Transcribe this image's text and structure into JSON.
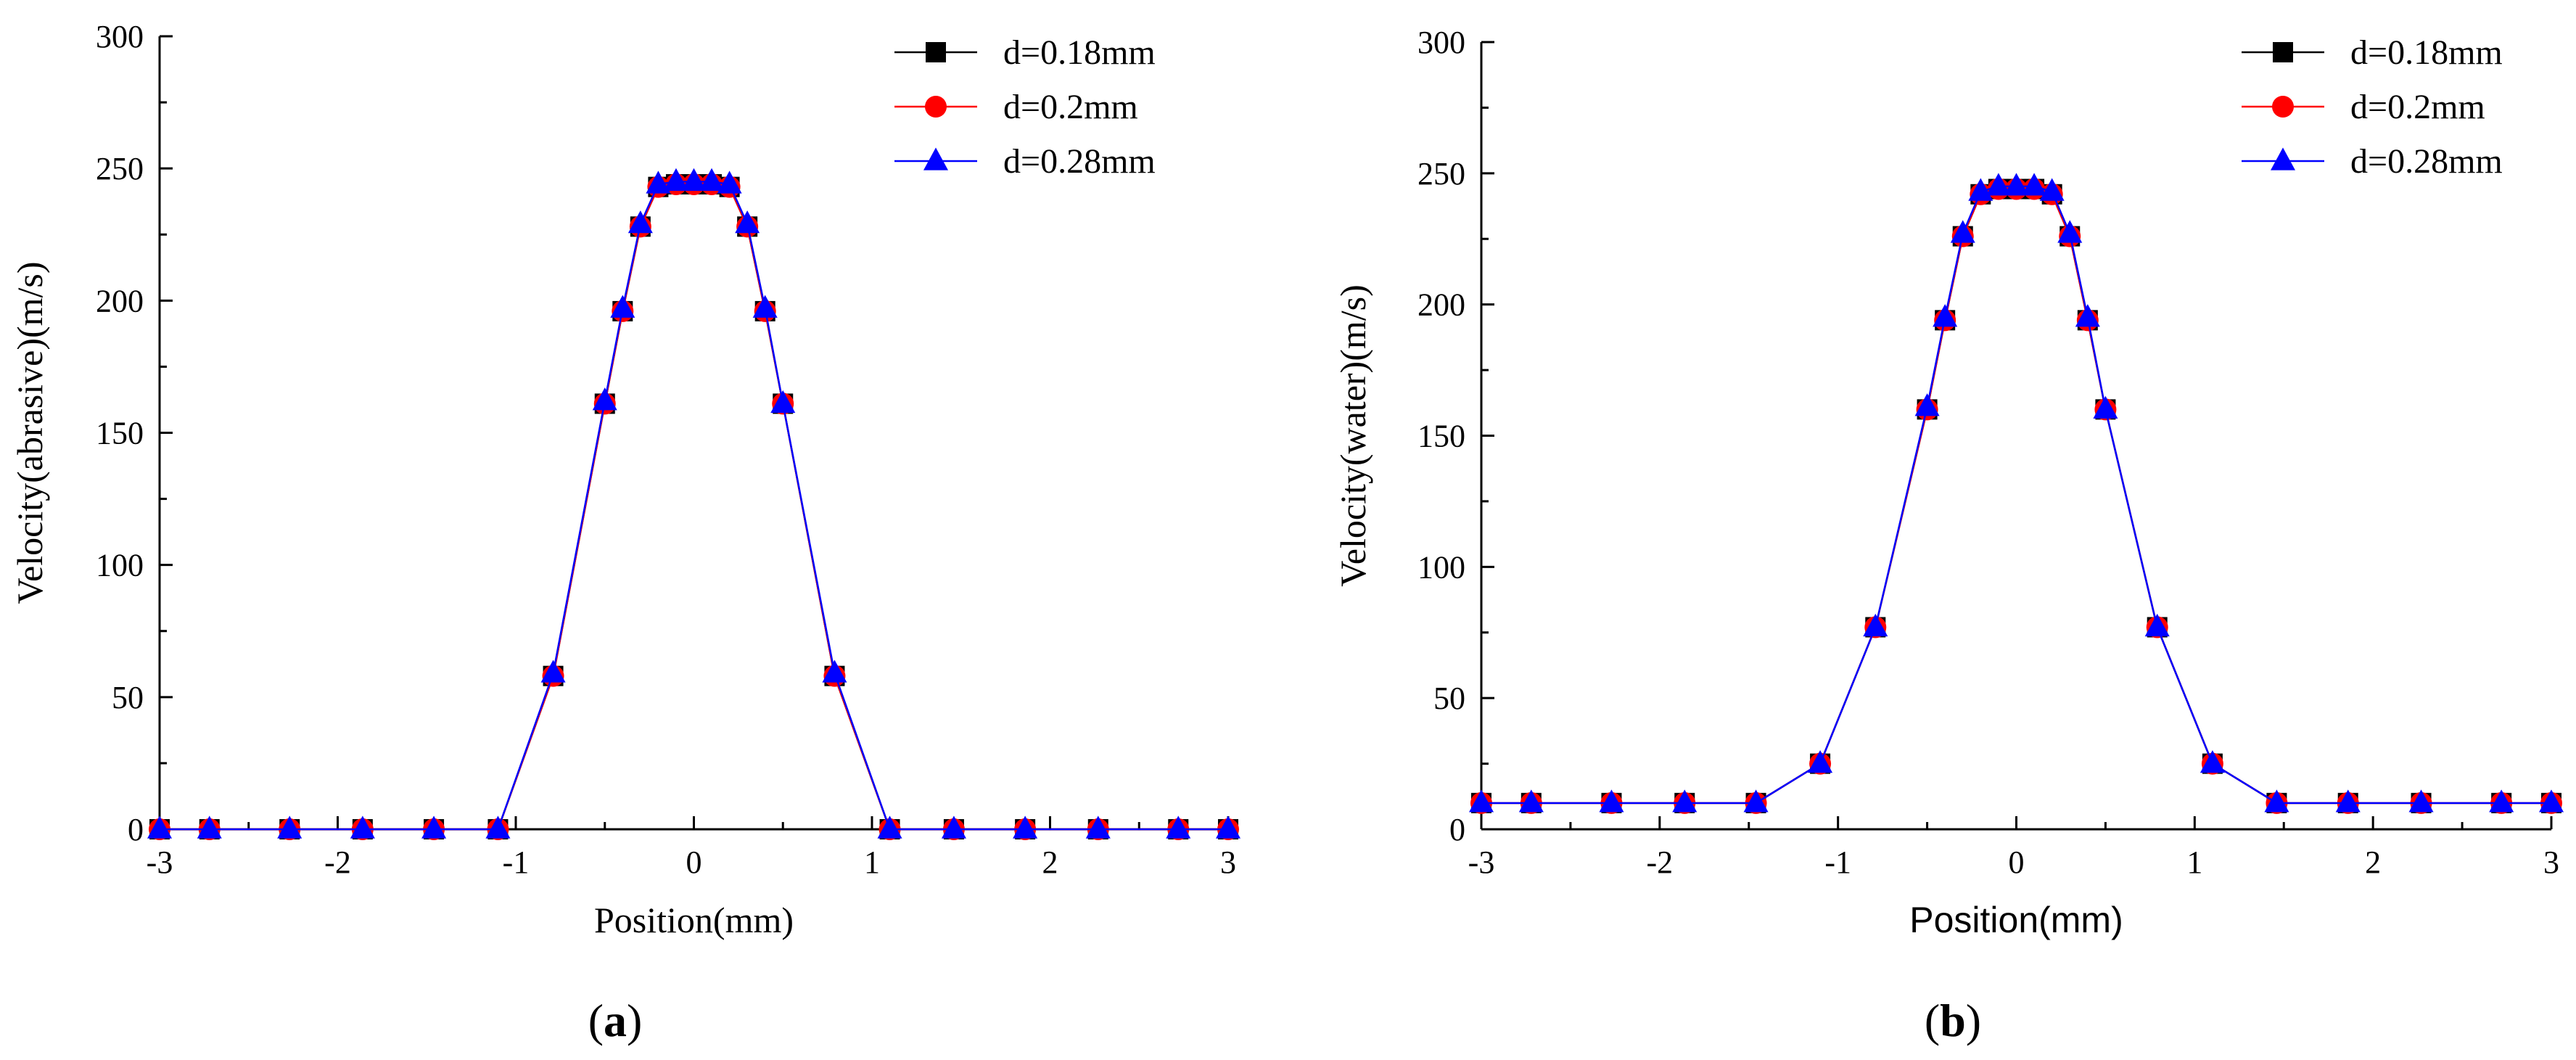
{
  "chart_data": [
    {
      "type": "line",
      "panel_label_open": "(",
      "panel_label_letter": "a",
      "panel_label_close": ")",
      "xlabel": "Position(mm)",
      "ylabel": "Velocity(abrasive)(m/s)",
      "xlim": [
        -3,
        3
      ],
      "ylim": [
        0,
        300
      ],
      "xticks": [
        "-3",
        "-2",
        "-1",
        "0",
        "1",
        "2",
        "3"
      ],
      "yticks": [
        "0",
        "50",
        "100",
        "150",
        "200",
        "250",
        "300"
      ],
      "legend_position": "top-right",
      "x": [
        -3,
        -2.72,
        -2.27,
        -1.86,
        -1.46,
        -1.1,
        -0.79,
        -0.5,
        -0.4,
        -0.3,
        -0.2,
        -0.1,
        0,
        0.1,
        0.2,
        0.3,
        0.4,
        0.5,
        0.79,
        1.1,
        1.46,
        1.86,
        2.27,
        2.72,
        3
      ],
      "series": [
        {
          "name": "d=0.18mm",
          "color": "#000000",
          "marker": "square",
          "values": [
            0,
            0,
            0,
            0,
            0,
            0,
            58,
            161,
            196,
            228,
            243,
            244,
            244,
            244,
            243,
            228,
            196,
            161,
            58,
            0,
            0,
            0,
            0,
            0,
            0
          ]
        },
        {
          "name": "d=0.2mm",
          "color": "#ff0000",
          "marker": "circle",
          "values": [
            0,
            0,
            0,
            0,
            0,
            0,
            58,
            161,
            196,
            228,
            243,
            244,
            244,
            244,
            243,
            228,
            196,
            161,
            58,
            0,
            0,
            0,
            0,
            0,
            0
          ]
        },
        {
          "name": "d=0.28mm",
          "color": "#0000ff",
          "marker": "triangle",
          "values": [
            0,
            0,
            0,
            0,
            0,
            0,
            59,
            162,
            197,
            229,
            244,
            245,
            245,
            245,
            244,
            229,
            197,
            161,
            59,
            0,
            0,
            0,
            0,
            0,
            0
          ]
        }
      ]
    },
    {
      "type": "line",
      "panel_label_open": "(",
      "panel_label_letter": "b",
      "panel_label_close": ")",
      "xlabel": "Position(mm)",
      "ylabel": "Velocity(water)(m/s)",
      "xlim": [
        -3,
        3
      ],
      "ylim": [
        0,
        300
      ],
      "xticks": [
        "-3",
        "-2",
        "-1",
        "0",
        "1",
        "2",
        "3"
      ],
      "yticks": [
        "0",
        "50",
        "100",
        "150",
        "200",
        "250",
        "300"
      ],
      "legend_position": "top-right",
      "x": [
        -3,
        -2.72,
        -2.27,
        -1.86,
        -1.46,
        -1.1,
        -0.79,
        -0.5,
        -0.4,
        -0.3,
        -0.2,
        -0.1,
        0,
        0.1,
        0.2,
        0.3,
        0.4,
        0.5,
        0.79,
        1.1,
        1.46,
        1.86,
        2.27,
        2.72,
        3
      ],
      "series": [
        {
          "name": "d=0.18mm",
          "color": "#000000",
          "marker": "square",
          "values": [
            10,
            10,
            10,
            10,
            10,
            25,
            77,
            160,
            194,
            226,
            242,
            244,
            244,
            244,
            242,
            226,
            194,
            160,
            77,
            25,
            10,
            10,
            10,
            10,
            10
          ]
        },
        {
          "name": "d=0.2mm",
          "color": "#ff0000",
          "marker": "circle",
          "values": [
            10,
            10,
            10,
            10,
            10,
            25,
            77,
            160,
            194,
            226,
            242,
            244,
            244,
            244,
            242,
            226,
            194,
            160,
            77,
            25,
            10,
            10,
            10,
            10,
            10
          ]
        },
        {
          "name": "d=0.28mm",
          "color": "#0000ff",
          "marker": "triangle",
          "values": [
            10,
            10,
            10,
            10,
            10,
            25,
            77,
            161,
            195,
            227,
            243,
            245,
            245,
            245,
            243,
            227,
            195,
            160,
            77,
            25,
            10,
            10,
            10,
            10,
            10
          ]
        }
      ]
    }
  ]
}
